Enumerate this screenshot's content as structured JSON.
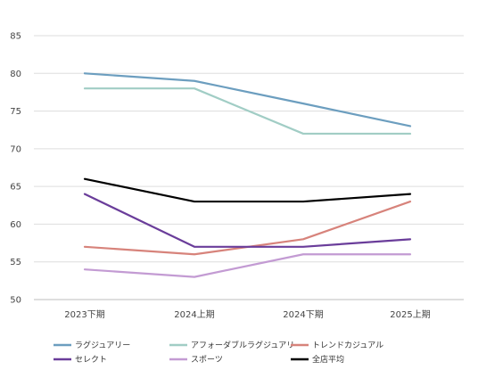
{
  "chart_data": {
    "type": "line",
    "title": "",
    "xlabel": "",
    "ylabel": "",
    "categories": [
      "2023下期",
      "2024上期",
      "2024下期",
      "2025上期"
    ],
    "ylim": [
      50,
      85
    ],
    "yticks": [
      50,
      55,
      60,
      65,
      70,
      75,
      80,
      85
    ],
    "grid": "horizontal",
    "legend_position": "bottom",
    "series": [
      {
        "name": "ラグジュアリー",
        "color": "#6c9ebf",
        "values": [
          80,
          79,
          76,
          73
        ]
      },
      {
        "name": "アフォーダブルラグジュアリー",
        "color": "#a1cdc5",
        "values": [
          78,
          78,
          72,
          72
        ]
      },
      {
        "name": "トレンドカジュアル",
        "color": "#d7837b",
        "values": [
          57,
          56,
          58,
          63
        ]
      },
      {
        "name": "セレクト",
        "color": "#6a3d9a",
        "values": [
          64,
          57,
          57,
          58
        ]
      },
      {
        "name": "スポーツ",
        "color": "#c39bd3",
        "values": [
          54,
          53,
          56,
          56
        ]
      },
      {
        "name": "全店平均",
        "color": "#000000",
        "values": [
          66,
          63,
          63,
          64
        ]
      }
    ]
  }
}
